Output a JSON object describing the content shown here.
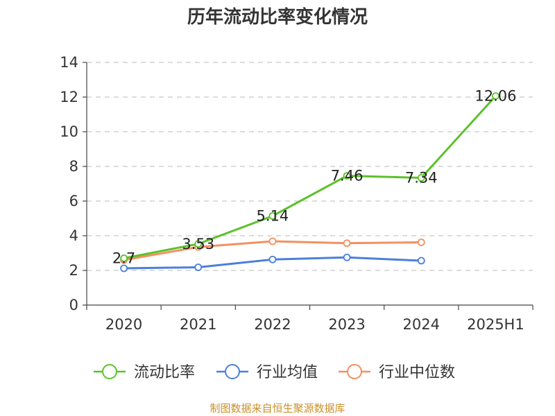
{
  "chart_data": {
    "type": "line",
    "title": "历年流动比率变化情况",
    "categories": [
      "2020",
      "2021",
      "2022",
      "2023",
      "2024",
      "2025H1"
    ],
    "ylim": [
      0,
      14
    ],
    "yticks": [
      0,
      2,
      4,
      6,
      8,
      10,
      12,
      14
    ],
    "grid": true,
    "legend_position": "bottom",
    "series": [
      {
        "name": "流动比率",
        "color": "#5cc12b",
        "values": [
          2.7,
          3.53,
          5.14,
          7.46,
          7.34,
          12.06
        ],
        "data_labels": [
          "2.7",
          "3.53",
          "5.14",
          "7.46",
          "7.34",
          "12.06"
        ]
      },
      {
        "name": "行业均值",
        "color": "#4a7fdc",
        "values": [
          2.12,
          2.18,
          2.63,
          2.75,
          2.56,
          null
        ]
      },
      {
        "name": "行业中位数",
        "color": "#f39060",
        "values": [
          2.6,
          3.35,
          3.68,
          3.57,
          3.62,
          null
        ]
      }
    ],
    "source": "制图数据来自恒生聚源数据库"
  }
}
